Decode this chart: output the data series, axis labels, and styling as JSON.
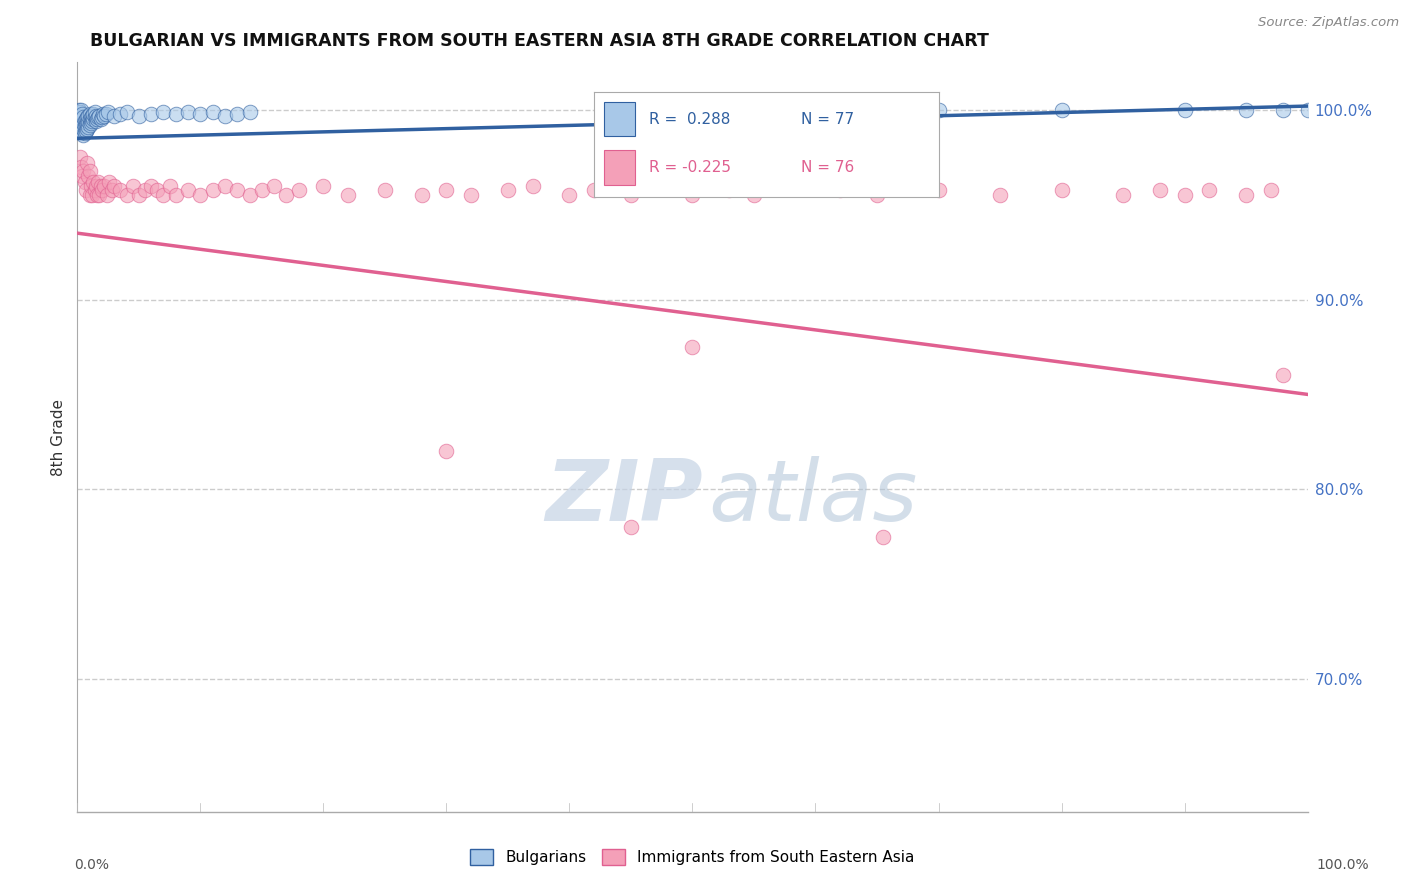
{
  "title": "BULGARIAN VS IMMIGRANTS FROM SOUTH EASTERN ASIA 8TH GRADE CORRELATION CHART",
  "source": "Source: ZipAtlas.com",
  "ylabel": "8th Grade",
  "xmin": 0.0,
  "xmax": 100.0,
  "ymin": 63.0,
  "ymax": 102.5,
  "yticks": [
    70.0,
    80.0,
    90.0,
    100.0
  ],
  "ytick_labels": [
    "70.0%",
    "80.0%",
    "90.0%",
    "100.0%"
  ],
  "blue_R": 0.288,
  "blue_N": 77,
  "pink_R": -0.225,
  "pink_N": 76,
  "blue_color": "#a8c8e8",
  "pink_color": "#f4a0b8",
  "blue_line_color": "#3060a0",
  "pink_line_color": "#e06090",
  "legend_label_blue": "Bulgarians",
  "legend_label_pink": "Immigrants from South Eastern Asia",
  "blue_x": [
    0.1,
    0.1,
    0.1,
    0.1,
    0.2,
    0.2,
    0.2,
    0.2,
    0.3,
    0.3,
    0.3,
    0.3,
    0.3,
    0.4,
    0.4,
    0.4,
    0.4,
    0.5,
    0.5,
    0.5,
    0.5,
    0.6,
    0.6,
    0.6,
    0.7,
    0.7,
    0.7,
    0.8,
    0.8,
    0.8,
    0.9,
    0.9,
    0.9,
    1.0,
    1.0,
    1.0,
    1.1,
    1.1,
    1.2,
    1.2,
    1.3,
    1.3,
    1.4,
    1.4,
    1.5,
    1.5,
    1.6,
    1.7,
    1.8,
    1.9,
    2.0,
    2.1,
    2.2,
    2.3,
    2.5,
    3.0,
    3.5,
    4.0,
    5.0,
    6.0,
    7.0,
    8.0,
    9.0,
    10.0,
    11.0,
    12.0,
    13.0,
    14.0,
    50.0,
    55.0,
    65.0,
    70.0,
    80.0,
    90.0,
    95.0,
    98.0,
    100.0
  ],
  "blue_y": [
    99.2,
    99.5,
    99.8,
    100.0,
    99.0,
    99.3,
    99.6,
    99.9,
    98.8,
    99.1,
    99.4,
    99.7,
    100.0,
    98.9,
    99.2,
    99.5,
    99.8,
    98.7,
    99.0,
    99.3,
    99.6,
    98.8,
    99.1,
    99.4,
    98.9,
    99.2,
    99.5,
    99.0,
    99.3,
    99.6,
    99.1,
    99.4,
    99.7,
    99.2,
    99.5,
    99.8,
    99.3,
    99.6,
    99.4,
    99.7,
    99.5,
    99.8,
    99.6,
    99.9,
    99.4,
    99.7,
    99.5,
    99.6,
    99.7,
    99.5,
    99.6,
    99.8,
    99.7,
    99.8,
    99.9,
    99.7,
    99.8,
    99.9,
    99.7,
    99.8,
    99.9,
    99.8,
    99.9,
    99.8,
    99.9,
    99.7,
    99.8,
    99.9,
    100.0,
    99.9,
    99.9,
    100.0,
    100.0,
    100.0,
    100.0,
    100.0,
    100.0
  ],
  "pink_x": [
    0.2,
    0.3,
    0.4,
    0.5,
    0.6,
    0.7,
    0.8,
    0.9,
    1.0,
    1.0,
    1.1,
    1.2,
    1.3,
    1.4,
    1.5,
    1.6,
    1.7,
    1.8,
    1.9,
    2.0,
    2.2,
    2.4,
    2.6,
    2.8,
    3.0,
    3.5,
    4.0,
    4.5,
    5.0,
    5.5,
    6.0,
    6.5,
    7.0,
    7.5,
    8.0,
    9.0,
    10.0,
    11.0,
    12.0,
    13.0,
    14.0,
    15.0,
    16.0,
    17.0,
    18.0,
    20.0,
    22.0,
    25.0,
    28.0,
    30.0,
    32.0,
    35.0,
    37.0,
    40.0,
    42.0,
    45.0,
    48.0,
    50.0,
    53.0,
    55.0,
    62.0,
    65.0,
    70.0,
    75.0,
    80.0,
    85.0,
    88.0,
    90.0,
    92.0,
    95.0,
    97.0,
    98.0,
    50.0,
    30.0,
    45.0,
    65.5
  ],
  "pink_y": [
    97.5,
    97.0,
    96.5,
    96.8,
    96.2,
    95.8,
    97.2,
    96.5,
    95.5,
    96.8,
    96.0,
    95.5,
    96.2,
    95.8,
    96.0,
    95.5,
    96.2,
    95.5,
    96.0,
    95.8,
    96.0,
    95.5,
    96.2,
    95.8,
    96.0,
    95.8,
    95.5,
    96.0,
    95.5,
    95.8,
    96.0,
    95.8,
    95.5,
    96.0,
    95.5,
    95.8,
    95.5,
    95.8,
    96.0,
    95.8,
    95.5,
    95.8,
    96.0,
    95.5,
    95.8,
    96.0,
    95.5,
    95.8,
    95.5,
    95.8,
    95.5,
    95.8,
    96.0,
    95.5,
    95.8,
    95.5,
    96.0,
    95.5,
    95.8,
    95.5,
    95.8,
    95.5,
    95.8,
    95.5,
    95.8,
    95.5,
    95.8,
    95.5,
    95.8,
    95.5,
    95.8,
    86.0,
    87.5,
    82.0,
    78.0,
    77.5
  ],
  "blue_trend_x": [
    0,
    100
  ],
  "blue_trend_y": [
    98.5,
    100.2
  ],
  "pink_trend_x": [
    0,
    100
  ],
  "pink_trend_y": [
    93.5,
    85.0
  ],
  "watermark_zip_color": "#c8d4e8",
  "watermark_atlas_color": "#b8cce0"
}
